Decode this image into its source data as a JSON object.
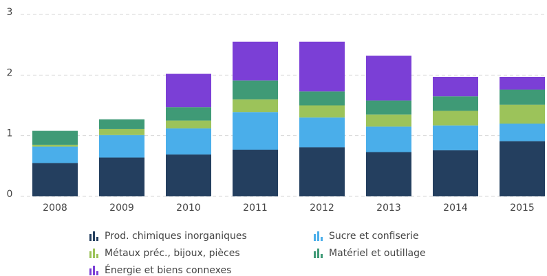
{
  "chart_data": {
    "type": "stacked_bar",
    "categories": [
      "2008",
      "2009",
      "2010",
      "2011",
      "2012",
      "2013",
      "2014",
      "2015"
    ],
    "series": [
      {
        "name": "Prod. chimiques inorganiques",
        "color": "#243f5f",
        "values": [
          0.55,
          0.64,
          0.69,
          0.77,
          0.81,
          0.73,
          0.76,
          0.91
        ]
      },
      {
        "name": "Sucre et confiserie",
        "color": "#4aaeea",
        "values": [
          0.27,
          0.37,
          0.43,
          0.62,
          0.49,
          0.42,
          0.41,
          0.29
        ]
      },
      {
        "name": "Métaux préc., bijoux, pièces",
        "color": "#9cc35a",
        "values": [
          0.03,
          0.1,
          0.13,
          0.21,
          0.2,
          0.2,
          0.24,
          0.31
        ]
      },
      {
        "name": "Matériel et outillage",
        "color": "#3f9a76",
        "values": [
          0.23,
          0.16,
          0.22,
          0.31,
          0.23,
          0.23,
          0.24,
          0.25
        ]
      },
      {
        "name": "Énergie et biens connexes",
        "color": "#7b3fd6",
        "values": [
          0,
          0,
          0.55,
          0.64,
          0.82,
          0.74,
          0.32,
          0.21
        ]
      }
    ],
    "ylim": [
      0,
      3
    ],
    "yticks": [
      0,
      1,
      2,
      3
    ],
    "grid": true
  }
}
